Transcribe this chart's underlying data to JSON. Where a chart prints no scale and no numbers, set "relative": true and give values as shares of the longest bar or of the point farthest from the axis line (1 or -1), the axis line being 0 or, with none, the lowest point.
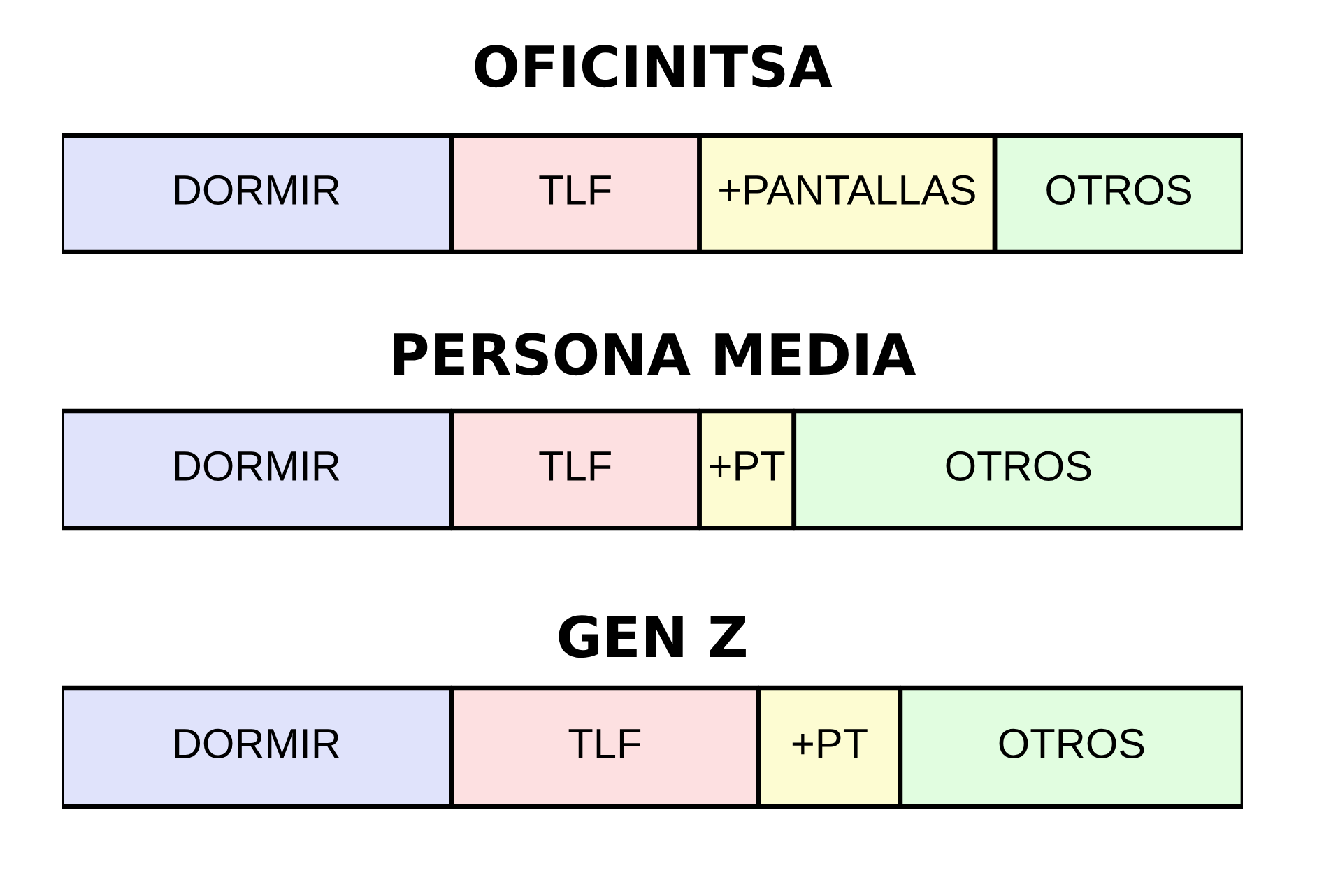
{
  "chart_data": [
    {
      "type": "bar",
      "title": "OFICINITSA",
      "orientation": "horizontal",
      "stacked": true,
      "relative": true,
      "categories": [
        null
      ],
      "series": [
        {
          "name": "DORMIR",
          "color": "#e0e3fb",
          "values": [
            0.33
          ]
        },
        {
          "name": "TLF",
          "color": "#fde0e1",
          "values": [
            0.21
          ]
        },
        {
          "name": "+PANTALLAS",
          "color": "#fdfcd2",
          "values": [
            0.25
          ]
        },
        {
          "name": "OTROS",
          "color": "#e1fde0",
          "values": [
            0.21
          ]
        }
      ]
    },
    {
      "type": "bar",
      "title": "PERSONA MEDIA",
      "orientation": "horizontal",
      "stacked": true,
      "relative": true,
      "categories": [
        null
      ],
      "series": [
        {
          "name": "DORMIR",
          "color": "#e0e3fb",
          "values": [
            0.33
          ]
        },
        {
          "name": "TLF",
          "color": "#fde0e1",
          "values": [
            0.21
          ]
        },
        {
          "name": "+PT",
          "color": "#fdfcd2",
          "values": [
            0.08
          ]
        },
        {
          "name": "OTROS",
          "color": "#e1fde0",
          "values": [
            0.38
          ]
        }
      ]
    },
    {
      "type": "bar",
      "title": "GEN Z",
      "orientation": "horizontal",
      "stacked": true,
      "relative": true,
      "categories": [
        null
      ],
      "series": [
        {
          "name": "DORMIR",
          "color": "#e0e3fb",
          "values": [
            0.33
          ]
        },
        {
          "name": "TLF",
          "color": "#fde0e1",
          "values": [
            0.26
          ]
        },
        {
          "name": "+PT",
          "color": "#fdfcd2",
          "values": [
            0.12
          ]
        },
        {
          "name": "OTROS",
          "color": "#e1fde0",
          "values": [
            0.29
          ]
        }
      ]
    }
  ]
}
